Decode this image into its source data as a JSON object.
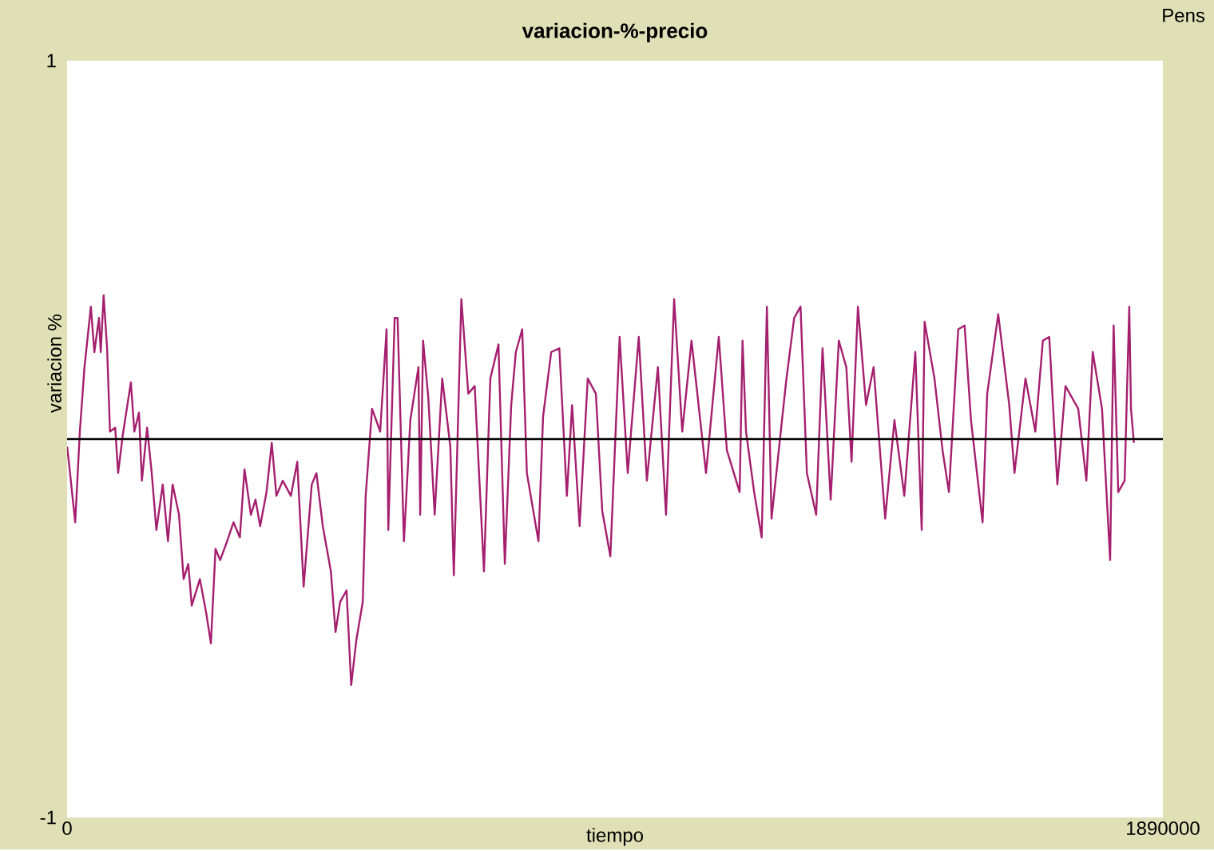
{
  "chart_data": {
    "type": "line",
    "title": "variacion-%-precio",
    "xlabel": "tiempo",
    "ylabel": "variacion %",
    "xlim": [
      0,
      1890000
    ],
    "ylim": [
      -1,
      1
    ],
    "xticks": [
      0,
      1890000
    ],
    "yticks": [
      -1,
      1
    ],
    "grid": false,
    "ref_lines": [
      {
        "axis": "y",
        "value": 0,
        "color": "#000000"
      }
    ],
    "annotations": [
      "Pens"
    ],
    "series": [
      {
        "color": "#a51f6f",
        "x": [
          0,
          3000,
          14000,
          22000,
          30000,
          41000,
          47000,
          55000,
          58000,
          63000,
          69000,
          74000,
          83000,
          88000,
          96000,
          110000,
          116000,
          124000,
          129000,
          138000,
          146000,
          154000,
          165000,
          174000,
          182000,
          193000,
          201000,
          209000,
          215000,
          229000,
          240000,
          248000,
          256000,
          264000,
          276000,
          287000,
          298000,
          306000,
          317000,
          325000,
          333000,
          344000,
          353000,
          361000,
          372000,
          386000,
          397000,
          408000,
          422000,
          430000,
          441000,
          455000,
          463000,
          471000,
          482000,
          490000,
          499000,
          510000,
          515000,
          526000,
          540000,
          551000,
          554000,
          565000,
          570000,
          581000,
          592000,
          606000,
          609000,
          614000,
          623000,
          634000,
          647000,
          661000,
          667000,
          680000,
          692000,
          703000,
          719000,
          730000,
          744000,
          755000,
          766000,
          774000,
          785000,
          793000,
          813000,
          821000,
          835000,
          849000,
          862000,
          871000,
          884000,
          898000,
          912000,
          923000,
          937000,
          953000,
          967000,
          986000,
          1000000,
          1019000,
          1033000,
          1047000,
          1061000,
          1077000,
          1102000,
          1124000,
          1138000,
          1160000,
          1165000,
          1171000,
          1185000,
          1198000,
          1207000,
          1215000,
          1240000,
          1254000,
          1265000,
          1276000,
          1292000,
          1303000,
          1317000,
          1331000,
          1344000,
          1353000,
          1364000,
          1378000,
          1391000,
          1411000,
          1427000,
          1444000,
          1463000,
          1474000,
          1479000,
          1496000,
          1510000,
          1521000,
          1537000,
          1548000,
          1559000,
          1579000,
          1587000,
          1606000,
          1625000,
          1634000,
          1653000,
          1670000,
          1683000,
          1694000,
          1708000,
          1722000,
          1744000,
          1758000,
          1769000,
          1785000,
          1799000,
          1805000,
          1813000,
          1824000,
          1832000,
          1835000,
          1840000
        ],
        "values": [
          -0.02,
          -0.06,
          -0.22,
          0.02,
          0.19,
          0.35,
          0.23,
          0.32,
          0.23,
          0.38,
          0.24,
          0.02,
          0.03,
          -0.09,
          0.01,
          0.15,
          0.02,
          0.07,
          -0.11,
          0.03,
          -0.09,
          -0.24,
          -0.12,
          -0.27,
          -0.12,
          -0.2,
          -0.37,
          -0.33,
          -0.44,
          -0.37,
          -0.46,
          -0.54,
          -0.29,
          -0.32,
          -0.27,
          -0.22,
          -0.26,
          -0.08,
          -0.2,
          -0.16,
          -0.23,
          -0.14,
          -0.01,
          -0.15,
          -0.11,
          -0.15,
          -0.06,
          -0.39,
          -0.12,
          -0.09,
          -0.23,
          -0.35,
          -0.51,
          -0.43,
          -0.4,
          -0.65,
          -0.53,
          -0.43,
          -0.15,
          0.08,
          0.02,
          0.29,
          -0.24,
          0.32,
          0.32,
          -0.27,
          0.05,
          0.19,
          -0.2,
          0.26,
          0.11,
          -0.2,
          0.16,
          -0.02,
          -0.36,
          0.37,
          0.12,
          0.14,
          -0.35,
          0.16,
          0.25,
          -0.33,
          0.09,
          0.23,
          0.29,
          -0.09,
          -0.27,
          0.06,
          0.23,
          0.24,
          -0.15,
          0.09,
          -0.23,
          0.16,
          0.12,
          -0.19,
          -0.31,
          0.27,
          -0.09,
          0.27,
          -0.11,
          0.19,
          -0.2,
          0.37,
          0.02,
          0.26,
          -0.09,
          0.27,
          -0.03,
          -0.14,
          0.26,
          0.02,
          -0.14,
          -0.26,
          0.35,
          -0.21,
          0.15,
          0.32,
          0.35,
          -0.09,
          -0.2,
          0.24,
          -0.16,
          0.26,
          0.19,
          -0.06,
          0.35,
          0.09,
          0.19,
          -0.21,
          0.05,
          -0.15,
          0.23,
          -0.24,
          0.31,
          0.16,
          -0.03,
          -0.14,
          0.29,
          0.3,
          0.05,
          -0.22,
          0.12,
          0.33,
          0.09,
          -0.09,
          0.16,
          0.02,
          0.26,
          0.27,
          -0.12,
          0.14,
          0.08,
          -0.11,
          0.23,
          0.08,
          -0.32,
          0.3,
          -0.14,
          -0.11,
          0.35,
          0.08,
          -0.01
        ]
      }
    ]
  }
}
